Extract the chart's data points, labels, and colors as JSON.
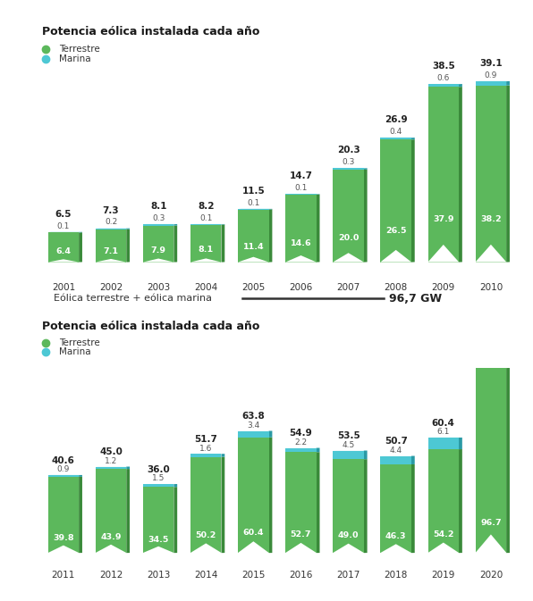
{
  "title1": "Potencia eólica instalada cada año",
  "title2": "Potencia eólica instalada cada año",
  "legend_terrestre": "Terrestre",
  "legend_marina": "Marina",
  "separator_label": "Eólica terrestre + eólica marina",
  "separator_value": "96,7 GW",
  "years1": [
    2001,
    2002,
    2003,
    2004,
    2005,
    2006,
    2007,
    2008,
    2009,
    2010
  ],
  "terrestre1": [
    6.4,
    7.1,
    7.9,
    8.1,
    11.4,
    14.6,
    20.0,
    26.5,
    37.9,
    38.2
  ],
  "marina1": [
    0.1,
    0.2,
    0.3,
    0.1,
    0.1,
    0.1,
    0.3,
    0.4,
    0.6,
    0.9
  ],
  "total1_label": [
    "6.5",
    "7.3",
    "8.1",
    "8.2",
    "11.5",
    "14.7",
    "20.3",
    "26.9",
    "38.5",
    "39.1"
  ],
  "marina1_label": [
    "0.1",
    "0.2",
    "0.3",
    "0.1",
    "0.1",
    "0.1",
    "0.3",
    "0.4",
    "0.6",
    "0.9"
  ],
  "years2": [
    2011,
    2012,
    2013,
    2014,
    2015,
    2016,
    2017,
    2018,
    2019,
    2020
  ],
  "terrestre2": [
    39.8,
    43.9,
    34.5,
    50.2,
    60.4,
    52.7,
    49.0,
    46.3,
    54.2,
    96.7
  ],
  "marina2": [
    0.9,
    1.2,
    1.5,
    1.6,
    3.4,
    2.2,
    4.5,
    4.4,
    6.1,
    0.0
  ],
  "total2_label": [
    "40.6",
    "45.0",
    "36.0",
    "51.7",
    "63.8",
    "54.9",
    "53.5",
    "50.7",
    "60.4",
    null
  ],
  "marina2_label": [
    "0.9",
    "1.2",
    "1.5",
    "1.6",
    "3.4",
    "2.2",
    "4.5",
    "4.4",
    "6.1",
    null
  ],
  "color_terrestre": "#5cb85c",
  "color_terrestre_dark": "#3a8a3a",
  "color_marina": "#4dc8d4",
  "color_marina_dark": "#2a9aa5",
  "bg_color": "#ffffff"
}
